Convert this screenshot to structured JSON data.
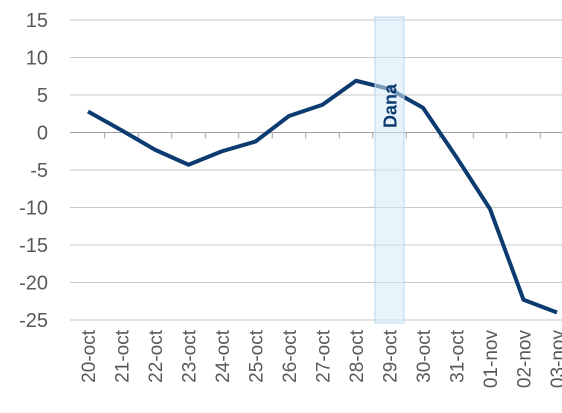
{
  "chart_data": {
    "type": "line",
    "categories": [
      "20-oct",
      "21-oct",
      "22-oct",
      "23-oct",
      "24-oct",
      "25-oct",
      "26-oct",
      "27-oct",
      "28-oct",
      "29-oct",
      "30-oct",
      "31-oct",
      "01-nov",
      "02-nov",
      "03-nov"
    ],
    "series": [
      {
        "color": "#0b3b70",
        "values": [
          2.8,
          0.3,
          -2.3,
          -4.3,
          -2.5,
          -1.2,
          2.2,
          3.7,
          6.9,
          5.8,
          3.3,
          -3.3,
          -10.2,
          -22.3,
          -24.0
        ]
      }
    ],
    "ylim": [
      -25,
      15
    ],
    "yticks": [
      -25,
      -20,
      -15,
      -10,
      -5,
      0,
      5,
      10,
      15
    ],
    "grid": true,
    "annotations": [
      {
        "text": "Dana",
        "category": "29-oct"
      }
    ]
  }
}
